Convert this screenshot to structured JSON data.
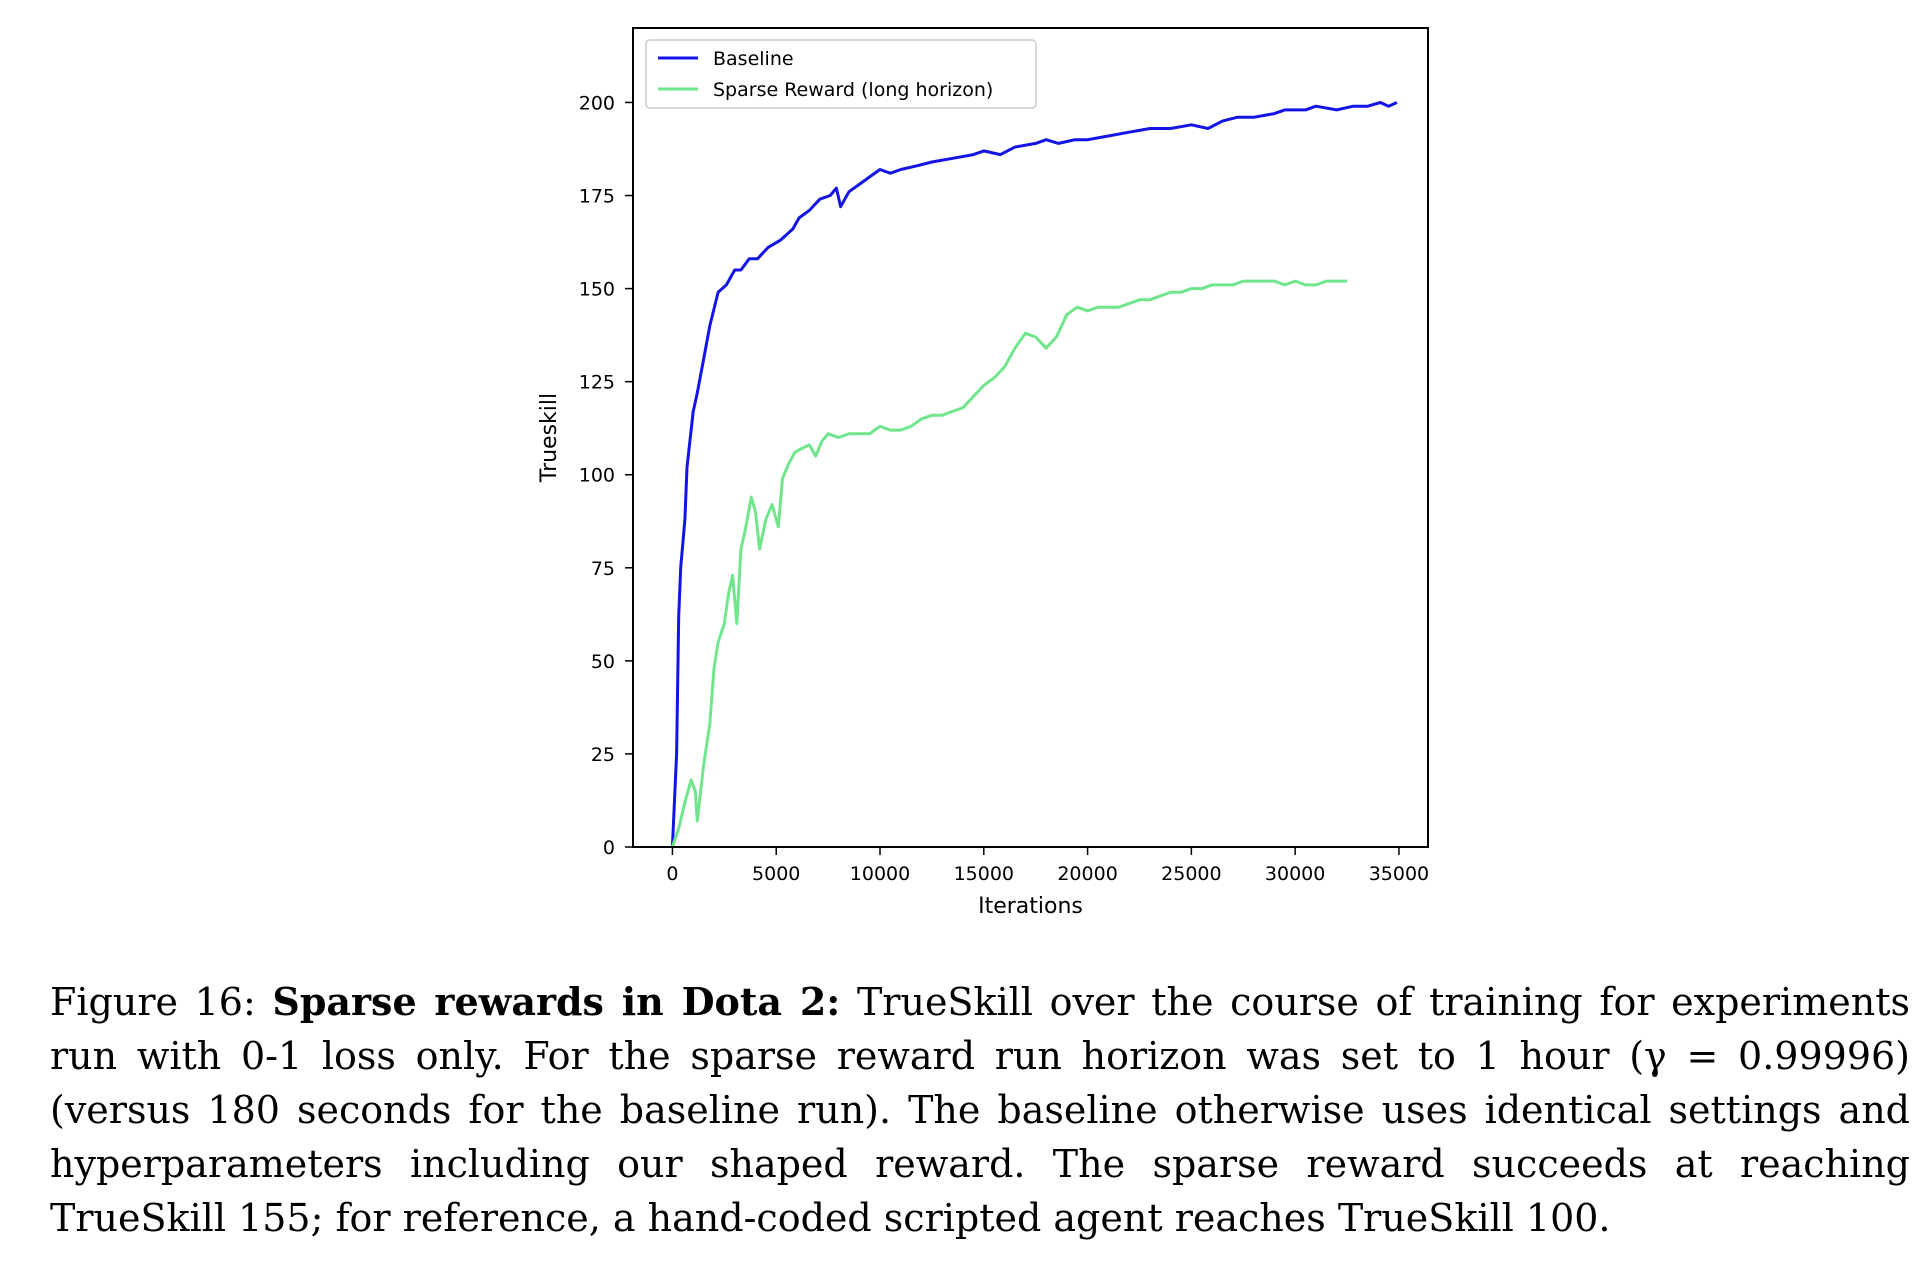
{
  "chart_data": {
    "type": "line",
    "xlabel": "Iterations",
    "ylabel": "Trueskill",
    "xlim": [
      -1900,
      36400
    ],
    "ylim": [
      0,
      220
    ],
    "xticks": [
      0,
      5000,
      10000,
      15000,
      20000,
      25000,
      30000,
      35000
    ],
    "yticks": [
      0,
      25,
      50,
      75,
      100,
      125,
      150,
      175,
      200
    ],
    "grid": false,
    "legend_position": "top-left",
    "series": [
      {
        "name": "Baseline",
        "color": "#1414e6",
        "points": [
          [
            0,
            0
          ],
          [
            200,
            25
          ],
          [
            300,
            62
          ],
          [
            400,
            75
          ],
          [
            600,
            88
          ],
          [
            700,
            102
          ],
          [
            1000,
            117
          ],
          [
            1200,
            122
          ],
          [
            1500,
            131
          ],
          [
            1800,
            140
          ],
          [
            2200,
            149
          ],
          [
            2600,
            151
          ],
          [
            3000,
            155
          ],
          [
            3300,
            155
          ],
          [
            3700,
            158
          ],
          [
            4100,
            158
          ],
          [
            4600,
            161
          ],
          [
            5200,
            163
          ],
          [
            5800,
            166
          ],
          [
            6100,
            169
          ],
          [
            6600,
            171
          ],
          [
            7100,
            174
          ],
          [
            7600,
            175
          ],
          [
            7900,
            177
          ],
          [
            8100,
            172
          ],
          [
            8500,
            176
          ],
          [
            9000,
            178
          ],
          [
            9500,
            180
          ],
          [
            10000,
            182
          ],
          [
            10500,
            181
          ],
          [
            11000,
            182
          ],
          [
            11800,
            183
          ],
          [
            12500,
            184
          ],
          [
            13500,
            185
          ],
          [
            14500,
            186
          ],
          [
            15000,
            187
          ],
          [
            15800,
            186
          ],
          [
            16500,
            188
          ],
          [
            17500,
            189
          ],
          [
            18000,
            190
          ],
          [
            18600,
            189
          ],
          [
            19400,
            190
          ],
          [
            20000,
            190
          ],
          [
            21000,
            191
          ],
          [
            22000,
            192
          ],
          [
            23000,
            193
          ],
          [
            24000,
            193
          ],
          [
            25000,
            194
          ],
          [
            25800,
            193
          ],
          [
            26500,
            195
          ],
          [
            27200,
            196
          ],
          [
            28000,
            196
          ],
          [
            29000,
            197
          ],
          [
            29500,
            198
          ],
          [
            30500,
            198
          ],
          [
            31000,
            199
          ],
          [
            32000,
            198
          ],
          [
            32800,
            199
          ],
          [
            33500,
            199
          ],
          [
            34100,
            200
          ],
          [
            34500,
            199
          ],
          [
            34900,
            200
          ]
        ]
      },
      {
        "name": "Sparse Reward (long horizon)",
        "color": "#6fe68c",
        "points": [
          [
            0,
            0
          ],
          [
            300,
            5
          ],
          [
            600,
            12
          ],
          [
            900,
            18
          ],
          [
            1100,
            15
          ],
          [
            1200,
            7
          ],
          [
            1500,
            22
          ],
          [
            1800,
            33
          ],
          [
            2000,
            48
          ],
          [
            2200,
            55
          ],
          [
            2500,
            60
          ],
          [
            2700,
            68
          ],
          [
            2900,
            73
          ],
          [
            3100,
            60
          ],
          [
            3300,
            80
          ],
          [
            3500,
            85
          ],
          [
            3800,
            94
          ],
          [
            4000,
            90
          ],
          [
            4200,
            80
          ],
          [
            4500,
            88
          ],
          [
            4800,
            92
          ],
          [
            5100,
            86
          ],
          [
            5300,
            99
          ],
          [
            5600,
            103
          ],
          [
            5900,
            106
          ],
          [
            6200,
            107
          ],
          [
            6600,
            108
          ],
          [
            6900,
            105
          ],
          [
            7200,
            109
          ],
          [
            7500,
            111
          ],
          [
            8000,
            110
          ],
          [
            8500,
            111
          ],
          [
            9000,
            111
          ],
          [
            9500,
            111
          ],
          [
            10000,
            113
          ],
          [
            10500,
            112
          ],
          [
            11000,
            112
          ],
          [
            11500,
            113
          ],
          [
            12000,
            115
          ],
          [
            12500,
            116
          ],
          [
            13000,
            116
          ],
          [
            13500,
            117
          ],
          [
            14000,
            118
          ],
          [
            14500,
            121
          ],
          [
            15000,
            124
          ],
          [
            15500,
            126
          ],
          [
            16000,
            129
          ],
          [
            16500,
            134
          ],
          [
            17000,
            138
          ],
          [
            17500,
            137
          ],
          [
            18000,
            134
          ],
          [
            18500,
            137
          ],
          [
            19000,
            143
          ],
          [
            19500,
            145
          ],
          [
            20000,
            144
          ],
          [
            20500,
            145
          ],
          [
            21000,
            145
          ],
          [
            21500,
            145
          ],
          [
            22000,
            146
          ],
          [
            22500,
            147
          ],
          [
            23000,
            147
          ],
          [
            23500,
            148
          ],
          [
            24000,
            149
          ],
          [
            24500,
            149
          ],
          [
            25000,
            150
          ],
          [
            25500,
            150
          ],
          [
            26000,
            151
          ],
          [
            26500,
            151
          ],
          [
            27000,
            151
          ],
          [
            27500,
            152
          ],
          [
            28000,
            152
          ],
          [
            28500,
            152
          ],
          [
            29000,
            152
          ],
          [
            29500,
            151
          ],
          [
            30000,
            152
          ],
          [
            30500,
            151
          ],
          [
            31000,
            151
          ],
          [
            31500,
            152
          ],
          [
            32000,
            152
          ],
          [
            32500,
            152
          ]
        ]
      }
    ]
  },
  "caption": {
    "label": "Figure 16:",
    "bold": "Sparse rewards in Dota 2:",
    "text": "TrueSkill over the course of training for experiments run with 0-1 loss only. For the sparse reward run horizon was set to 1 hour (γ = 0.99996) (versus 180 seconds for the baseline run). The baseline otherwise uses identical settings and hyperparameters including our shaped reward. The sparse reward succeeds at reaching TrueSkill 155; for reference, a hand-coded scripted agent reaches TrueSkill 100."
  }
}
